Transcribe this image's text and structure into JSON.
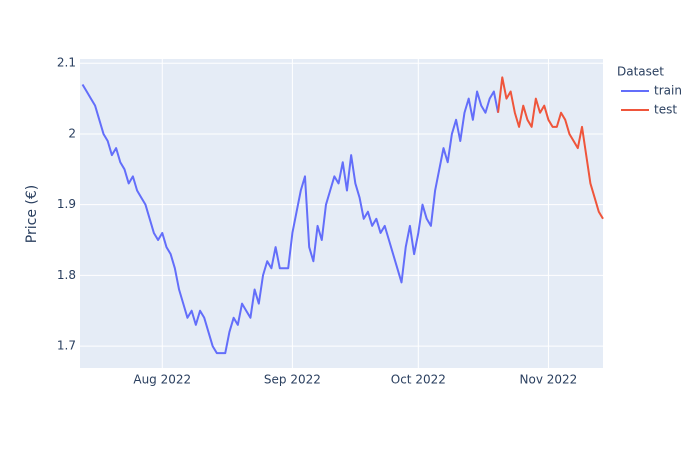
{
  "chart_data": {
    "type": "line",
    "y_label": "Price (€)",
    "legend_title": "Dataset",
    "legend_position": "right",
    "grid": true,
    "xlim": [
      193.4,
      318
    ],
    "xticks": [
      {
        "value": 213,
        "label": "Aug 2022"
      },
      {
        "value": 244,
        "label": "Sep 2022"
      },
      {
        "value": 274,
        "label": "Oct 2022"
      },
      {
        "value": 305,
        "label": "Nov 2022"
      }
    ],
    "ylim": [
      1.669,
      2.106
    ],
    "yticks": [
      1.7,
      1.8,
      1.9,
      2,
      2.1
    ],
    "series": [
      {
        "name": "train",
        "color": "#636efa",
        "x": [
          194,
          195,
          196,
          197,
          198,
          199,
          200,
          201,
          202,
          203,
          204,
          205,
          206,
          207,
          208,
          209,
          210,
          211,
          212,
          213,
          214,
          215,
          216,
          217,
          218,
          219,
          220,
          221,
          222,
          223,
          224,
          225,
          226,
          227,
          228,
          229,
          230,
          231,
          232,
          233,
          234,
          235,
          236,
          237,
          238,
          239,
          240,
          241,
          242,
          243,
          244,
          245,
          246,
          247,
          248,
          249,
          250,
          251,
          252,
          253,
          254,
          255,
          256,
          257,
          258,
          259,
          260,
          261,
          262,
          263,
          264,
          265,
          266,
          267,
          268,
          269,
          270,
          271,
          272,
          273,
          274,
          275,
          276,
          277,
          278,
          279,
          280,
          281,
          282,
          283,
          284,
          285,
          286,
          287,
          288,
          289,
          290,
          291,
          292,
          293
        ],
        "values": [
          2.07,
          2.06,
          2.05,
          2.04,
          2.02,
          2.0,
          1.99,
          1.97,
          1.98,
          1.96,
          1.95,
          1.93,
          1.94,
          1.92,
          1.91,
          1.9,
          1.88,
          1.86,
          1.85,
          1.86,
          1.84,
          1.83,
          1.81,
          1.78,
          1.76,
          1.74,
          1.75,
          1.73,
          1.75,
          1.74,
          1.72,
          1.7,
          1.69,
          1.69,
          1.69,
          1.72,
          1.74,
          1.73,
          1.76,
          1.75,
          1.74,
          1.78,
          1.76,
          1.8,
          1.82,
          1.81,
          1.84,
          1.81,
          1.81,
          1.81,
          1.86,
          1.89,
          1.92,
          1.94,
          1.84,
          1.82,
          1.87,
          1.85,
          1.9,
          1.92,
          1.94,
          1.93,
          1.96,
          1.92,
          1.97,
          1.93,
          1.91,
          1.88,
          1.89,
          1.87,
          1.88,
          1.86,
          1.87,
          1.85,
          1.83,
          1.81,
          1.79,
          1.84,
          1.87,
          1.83,
          1.86,
          1.9,
          1.88,
          1.87,
          1.92,
          1.95,
          1.98,
          1.96,
          2.0,
          2.02,
          1.99,
          2.03,
          2.05,
          2.02,
          2.06,
          2.04,
          2.03,
          2.05,
          2.06,
          2.03
        ]
      },
      {
        "name": "test",
        "color": "#ef553b",
        "x": [
          293,
          294,
          295,
          296,
          297,
          298,
          299,
          300,
          301,
          302,
          303,
          304,
          305,
          306,
          307,
          308,
          309,
          310,
          311,
          312,
          313,
          314,
          315,
          316,
          317,
          318
        ],
        "values": [
          2.03,
          2.08,
          2.05,
          2.06,
          2.03,
          2.01,
          2.04,
          2.02,
          2.01,
          2.05,
          2.03,
          2.04,
          2.02,
          2.01,
          2.01,
          2.03,
          2.02,
          2.0,
          1.99,
          1.98,
          2.01,
          1.97,
          1.93,
          1.91,
          1.89,
          1.88
        ]
      }
    ]
  }
}
